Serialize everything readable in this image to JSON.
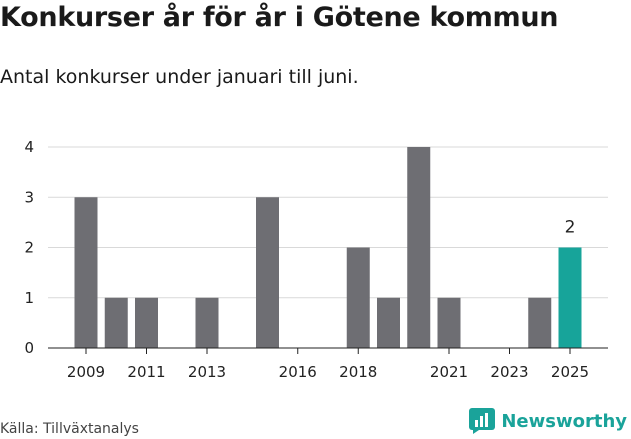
{
  "header": {
    "title": "Konkurser år för år i Götene kommun",
    "subtitle": "Antal konkurser under januari till juni."
  },
  "footer": {
    "source": "Källa: Tillväxtanalys",
    "brand": "Newsworthy"
  },
  "colors": {
    "bar": "#6e6e73",
    "highlight": "#17a49a",
    "grid": "#d9d9d9",
    "brand": "#1aa39a"
  },
  "chart_data": {
    "type": "bar",
    "title": "Konkurser år för år i Götene kommun",
    "subtitle": "Antal konkurser under januari till juni.",
    "categories": [
      "2009",
      "2010",
      "2011",
      "2012",
      "2013",
      "2014",
      "2015",
      "2016",
      "2017",
      "2018",
      "2019",
      "2020",
      "2021",
      "2022",
      "2023",
      "2024",
      "2025"
    ],
    "values": [
      3,
      1,
      1,
      0,
      1,
      0,
      3,
      0,
      0,
      2,
      1,
      4,
      1,
      0,
      0,
      1,
      2
    ],
    "x_tick_labels": [
      "2009",
      "2011",
      "2013",
      "2016",
      "2018",
      "2021",
      "2023",
      "2025"
    ],
    "y_ticks": [
      0,
      1,
      2,
      3,
      4
    ],
    "ylim": [
      0,
      4
    ],
    "highlight_category": "2025",
    "data_labels": [
      {
        "category": "2025",
        "text": "2"
      }
    ],
    "grid": true,
    "legend": "none"
  }
}
